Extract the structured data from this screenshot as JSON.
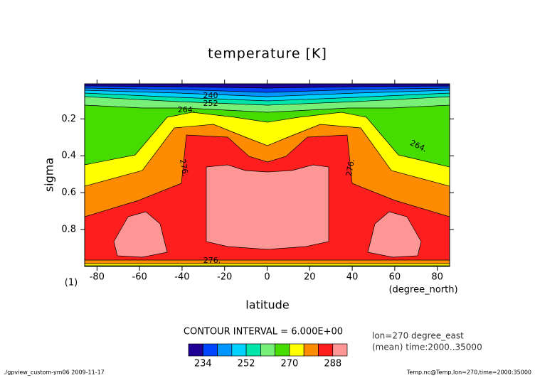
{
  "chart_data": {
    "type": "contour",
    "title": "temperature [K]",
    "x_label": "latitude",
    "y_label": "sigma",
    "x_unit": "(degree_north)",
    "y_unit": "(1)",
    "xlim": [
      -85.8,
      85.8
    ],
    "ylim": [
      1,
      0.01
    ],
    "xticks": [
      -80,
      -60,
      -40,
      -20,
      0,
      20,
      40,
      60,
      80
    ],
    "yticks": [
      0.2,
      0.4,
      0.6,
      0.8
    ],
    "contour_interval": "CONTOUR INTERVAL = 6.000E+00",
    "annotations": [
      "lon=270 degree_east",
      "(mean) time:2000..35000"
    ],
    "contour_labels": [
      "240",
      "252",
      "264.",
      "264.",
      "276.",
      "276.",
      "276."
    ],
    "colorbar": {
      "levels": [
        234,
        240,
        246,
        252,
        258,
        264,
        270,
        276,
        282,
        288
      ],
      "ticks": [
        234,
        252,
        270,
        288
      ],
      "colors": [
        "#1e0096",
        "#0046ff",
        "#0096ff",
        "#00d2ff",
        "#00e6aa",
        "#78f078",
        "#46dc00",
        "#ffff00",
        "#ff8c00",
        "#ff1e1e",
        "#ff9696"
      ]
    },
    "footer_left": "./gpview_custom-ym06   2009-11-17",
    "footer_right": "Temp.nc@Temp,lon=270,time=2000:35000"
  }
}
